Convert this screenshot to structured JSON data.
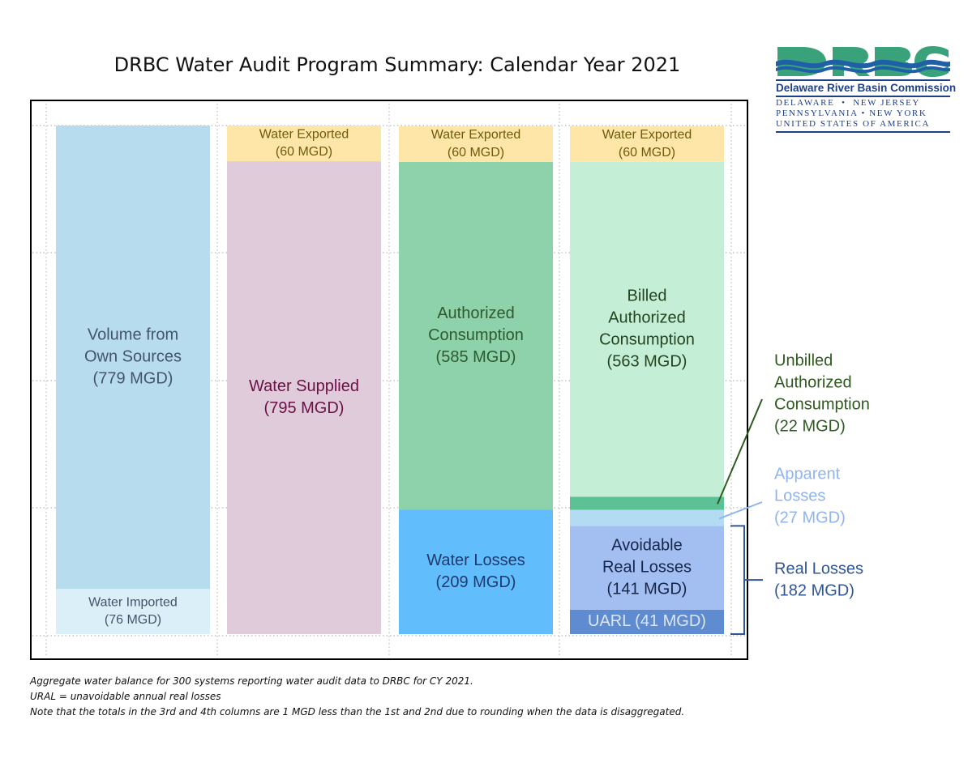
{
  "title": "DRBC Water Audit Program Summary: Calendar Year 2021",
  "logo": {
    "wordmark": "DRBC",
    "name": "Delaware River Basin Commission",
    "line1": "DELAWARE  •  NEW JERSEY",
    "line2": "PENNSYLVANIA • NEW YORK",
    "line3": "UNITED STATES OF AMERICA"
  },
  "notes": [
    "Aggregate water balance for 300 systems reporting water audit data to DRBC for CY 2021.",
    "URAL = unavoidable annual real losses",
    "Note that the totals in the 3rd and 4th columns are 1 MGD less than the 1st and 2nd due to rounding when the data is disaggregated."
  ],
  "chart_data": {
    "type": "bar",
    "stacked": true,
    "unit": "MGD",
    "ylim": [
      0,
      855
    ],
    "grid": true,
    "columns": [
      {
        "segments": [
          {
            "label": [
              "Water Imported",
              "(76 MGD)"
            ],
            "value": 76,
            "color": "#daeff7",
            "text_color": "#44546a",
            "font_size": 16
          },
          {
            "label": [
              "Volume from",
              "Own Sources",
              "(779 MGD)"
            ],
            "value": 779,
            "color": "#b7dcee",
            "text_color": "#44546a",
            "font_size": 20
          }
        ]
      },
      {
        "segments": [
          {
            "label": [
              "Water Supplied",
              "(795 MGD)"
            ],
            "value": 795,
            "color": "#dfcbd9",
            "text_color": "#6b0f47",
            "font_size": 20
          },
          {
            "label": [
              "Water Exported",
              "(60 MGD)"
            ],
            "value": 60,
            "color": "#fde6a8",
            "text_color": "#6b5c0e",
            "font_size": 16
          }
        ]
      },
      {
        "segments": [
          {
            "label": [
              "Water Losses",
              "(209 MGD)"
            ],
            "value": 209,
            "color": "#62bdfc",
            "text_color": "#1f3a6e",
            "font_size": 20
          },
          {
            "label": [
              "Authorized",
              "Consumption",
              "(585 MGD)"
            ],
            "value": 585,
            "color": "#8dd2ab",
            "text_color": "#2e5a2e",
            "font_size": 20
          },
          {
            "label": [
              "Water Exported",
              "(60 MGD)"
            ],
            "value": 60,
            "color": "#fde6a8",
            "text_color": "#6b5c0e",
            "font_size": 16
          }
        ]
      },
      {
        "segments": [
          {
            "label": [
              "UARL (41 MGD)"
            ],
            "value": 41,
            "color": "#5f8bd0",
            "text_color": "#dce7f7",
            "font_size": 20
          },
          {
            "label": [
              "Avoidable",
              "Real Losses",
              "(141 MGD)"
            ],
            "value": 141,
            "color": "#a3bff2",
            "text_color": "#16264a",
            "font_size": 20
          },
          {
            "label": [],
            "value": 27,
            "color": "#b4dbf4",
            "text_color": "#000000",
            "font_size": 16
          },
          {
            "label": [],
            "value": 22,
            "color": "#5cc296",
            "text_color": "#000000",
            "font_size": 16
          },
          {
            "label": [
              "Billed",
              "Authorized",
              "Consumption",
              "(563 MGD)"
            ],
            "value": 563,
            "color": "#c4eed6",
            "text_color": "#24441f",
            "font_size": 20
          },
          {
            "label": [
              "Water Exported",
              "(60 MGD)"
            ],
            "value": 60,
            "color": "#fde6a8",
            "text_color": "#6b5c0e",
            "font_size": 16
          }
        ]
      }
    ],
    "annotations": [
      {
        "label": [
          "Unbilled",
          "Authorized",
          "Consumption",
          "(22 MGD)"
        ],
        "color": "#2e5a1e",
        "points_to": "Unbilled Authorized Consumption (22 MGD)"
      },
      {
        "label": [
          "Apparent",
          "Losses",
          "(27 MGD)"
        ],
        "color": "#8fb4ef",
        "points_to": "Apparent Losses (27 MGD)"
      },
      {
        "label": [
          "Real Losses",
          "(182 MGD)"
        ],
        "color": "#2f5597",
        "points_to": "Real Losses (182 MGD)"
      }
    ]
  }
}
